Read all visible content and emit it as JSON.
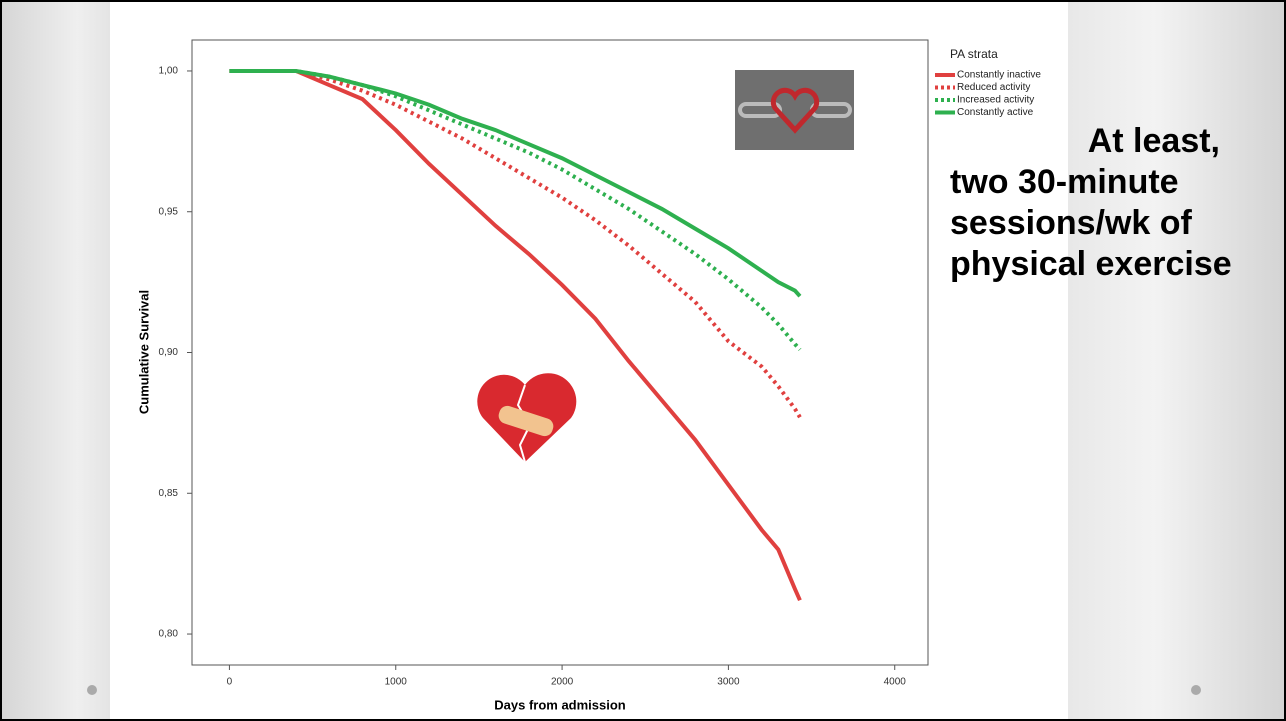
{
  "chart_data": {
    "type": "line",
    "y_label": "Cumulative Survival",
    "x_label": "Days from admission",
    "legend_title": "PA strata",
    "x": [
      0,
      400,
      600,
      800,
      1000,
      1200,
      1400,
      1600,
      1800,
      2000,
      2200,
      2400,
      2600,
      2800,
      3000,
      3200,
      3300,
      3400,
      3430
    ],
    "series": [
      {
        "name": "Constantly inactive",
        "color": "#e0403f",
        "dashed": false,
        "values": [
          1.0,
          1.0,
          0.995,
          0.99,
          0.979,
          0.967,
          0.956,
          0.945,
          0.935,
          0.924,
          0.912,
          0.897,
          0.883,
          0.869,
          0.853,
          0.837,
          0.83,
          0.816,
          0.812
        ]
      },
      {
        "name": "Reduced activity",
        "color": "#e0403f",
        "dashed": true,
        "values": [
          1.0,
          1.0,
          0.997,
          0.993,
          0.988,
          0.982,
          0.976,
          0.969,
          0.962,
          0.955,
          0.947,
          0.938,
          0.928,
          0.918,
          0.904,
          0.895,
          0.888,
          0.88,
          0.877
        ]
      },
      {
        "name": "Increased activity",
        "color": "#2eb04f",
        "dashed": true,
        "values": [
          1.0,
          1.0,
          0.998,
          0.995,
          0.991,
          0.986,
          0.981,
          0.976,
          0.971,
          0.965,
          0.958,
          0.951,
          0.943,
          0.935,
          0.926,
          0.916,
          0.91,
          0.903,
          0.901
        ]
      },
      {
        "name": "Constantly active",
        "color": "#2eb04f",
        "dashed": false,
        "values": [
          1.0,
          1.0,
          0.998,
          0.995,
          0.992,
          0.988,
          0.983,
          0.979,
          0.974,
          0.969,
          0.963,
          0.957,
          0.951,
          0.944,
          0.937,
          0.929,
          0.925,
          0.922,
          0.92
        ]
      }
    ],
    "xlim": [
      -225,
      4200
    ],
    "ylim": [
      0.789,
      1.011
    ],
    "xticks": [
      0,
      1000,
      2000,
      3000,
      4000
    ],
    "yticks": [
      {
        "value": 0.8,
        "label": "0,80"
      },
      {
        "value": 0.85,
        "label": "0,85"
      },
      {
        "value": 0.9,
        "label": "0,90"
      },
      {
        "value": 0.95,
        "label": "0,95"
      },
      {
        "value": 1.0,
        "label": "1,00"
      }
    ]
  },
  "slide_text": [
    "At least,",
    "two 30-minute",
    "sessions/wk of",
    "physical exercise"
  ]
}
